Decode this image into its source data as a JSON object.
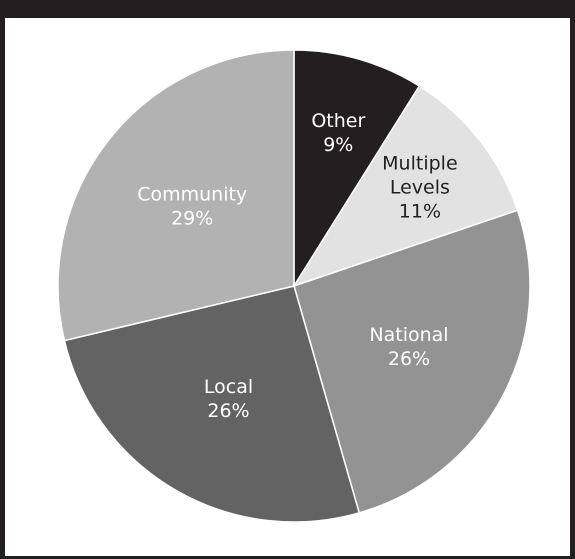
{
  "chart_data": {
    "type": "pie",
    "title": "",
    "slices": [
      {
        "label": "Other",
        "value": 9,
        "value_label": "9%",
        "color": "#231f20",
        "text_color": "#ffffff"
      },
      {
        "label": "Multiple Levels",
        "label_lines": [
          "Multiple",
          "Levels"
        ],
        "value": 11,
        "value_label": "11%",
        "color": "#e2e2e2",
        "text_color": "#231f20"
      },
      {
        "label": "National",
        "value": 26,
        "value_label": "26%",
        "color": "#939393",
        "text_color": "#ffffff"
      },
      {
        "label": "Local",
        "value": 26,
        "value_label": "26%",
        "color": "#636363",
        "text_color": "#ffffff"
      },
      {
        "label": "Community",
        "value": 29,
        "value_label": "29%",
        "color": "#b2b2b2",
        "text_color": "#ffffff"
      }
    ],
    "start": "12 o'clock",
    "direction": "clockwise",
    "legend": "none"
  }
}
